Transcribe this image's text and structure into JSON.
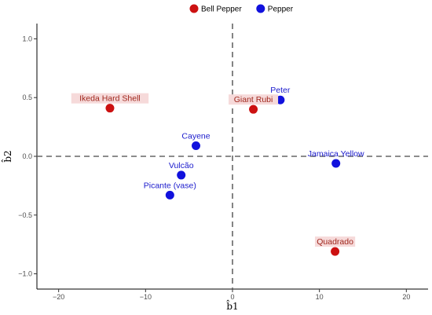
{
  "chart_data": {
    "type": "scatter",
    "xlabel": "b̂1",
    "ylabel": "b̂2",
    "xlim": [
      -22.5,
      22.5
    ],
    "ylim": [
      -1.13,
      1.13
    ],
    "xticks": [
      -20,
      -10,
      0,
      10,
      20
    ],
    "yticks": [
      -1.0,
      -0.5,
      0.0,
      0.5,
      1.0
    ],
    "ytick_labels": [
      "−1.0",
      "−0.5",
      "0.0",
      "0.5",
      "1.0"
    ],
    "xtick_labels": [
      "−20",
      "−10",
      "0",
      "10",
      "20"
    ],
    "grid": false,
    "reference_lines": {
      "x": 0,
      "y": 0,
      "style": "dashed"
    },
    "legend": {
      "position": "top",
      "entries": [
        {
          "name": "Bell Pepper",
          "color": "#cc1111"
        },
        {
          "name": "Pepper",
          "color": "#1111dd"
        }
      ]
    },
    "series": [
      {
        "name": "Bell Pepper",
        "color": "#cc1111",
        "label_color": "#a0281e",
        "label_bg": "#f6dada",
        "points": [
          {
            "label": "Ikeda Hard Shell",
            "x": -14.1,
            "y": 0.41
          },
          {
            "label": "Giant Rubi",
            "x": 2.4,
            "y": 0.4
          },
          {
            "label": "Quadrado",
            "x": 11.8,
            "y": -0.81
          }
        ]
      },
      {
        "name": "Pepper",
        "color": "#1111dd",
        "label_color": "#1a1acc",
        "label_bg": "none",
        "points": [
          {
            "label": "Peter",
            "x": 5.5,
            "y": 0.48
          },
          {
            "label": "Cayene",
            "x": -4.2,
            "y": 0.09
          },
          {
            "label": "Jamaica Yellow",
            "x": 11.9,
            "y": -0.06
          },
          {
            "label": "Vulcão",
            "x": -5.9,
            "y": -0.16
          },
          {
            "label": "Picante (vase)",
            "x": -7.2,
            "y": -0.33
          }
        ]
      }
    ]
  }
}
